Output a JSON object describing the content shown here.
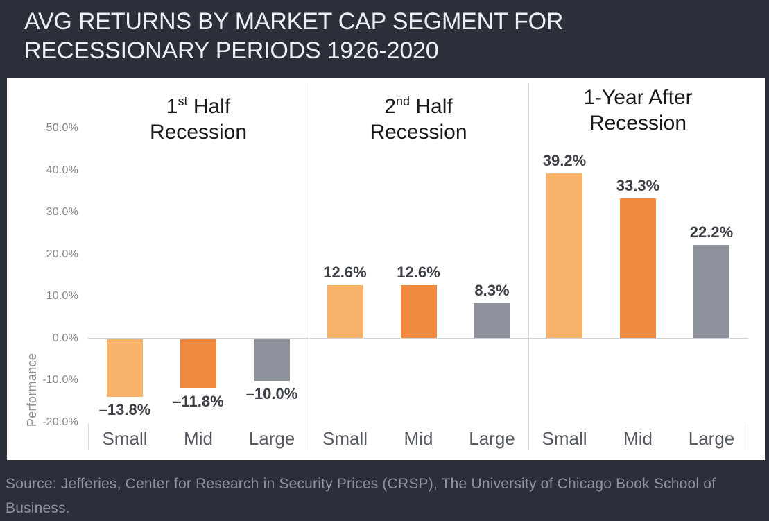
{
  "header": {
    "title_line1": "AVG RETURNS BY MARKET CAP SEGMENT FOR",
    "title_line2": "RECESSIONARY PERIODS 1926-2020"
  },
  "footer": {
    "source_line1": "Source: Jefferies, Center for Research in Security Prices (CRSP), The University of Chicago Book School of",
    "source_line2": "Business."
  },
  "chart_data": {
    "type": "bar",
    "title": "AVG RETURNS BY MARKET CAP SEGMENT FOR RECESSIONARY PERIODS 1926-2020",
    "y_axis": {
      "label": "Performance",
      "ylim": [
        -20,
        50
      ],
      "tick_values": [
        50,
        40,
        30,
        20,
        10,
        0,
        -10,
        -20
      ],
      "tick_labels": [
        "50.0%",
        "40.0%",
        "30.0%",
        "20.0%",
        "10.0%",
        "0.0%",
        "-10.0%",
        "-20.0%"
      ]
    },
    "categories": [
      "Small",
      "Mid",
      "Large"
    ],
    "bar_colors": [
      "#f9b269",
      "#f0883e",
      "#8d929d"
    ],
    "grid": false,
    "legend": false,
    "panels": [
      {
        "title": "1st Half Recession",
        "title_line1": {
          "prefix": "1",
          "sup": "st",
          "rest": " Half"
        },
        "title_line2": "Recession",
        "values": [
          -13.8,
          -11.8,
          -10.0
        ],
        "value_labels": [
          "–13.8%",
          "–11.8%",
          "–10.0%"
        ]
      },
      {
        "title": "2nd Half Recession",
        "title_line1": {
          "prefix": "2",
          "sup": "nd",
          "rest": " Half"
        },
        "title_line2": "Recession",
        "values": [
          12.6,
          12.6,
          8.3
        ],
        "value_labels": [
          "12.6%",
          "12.6%",
          "8.3%"
        ]
      },
      {
        "title": "1-Year After Recession",
        "title_line1": {
          "prefix": "1-Year After",
          "sup": "",
          "rest": ""
        },
        "title_line2": "Recession",
        "values": [
          39.2,
          33.3,
          22.2
        ],
        "value_labels": [
          "39.2%",
          "33.3%",
          "22.2%"
        ]
      }
    ],
    "source": "Source: Jefferies, Center for Research in Security Prices (CRSP), The University of Chicago Book School of Business."
  }
}
